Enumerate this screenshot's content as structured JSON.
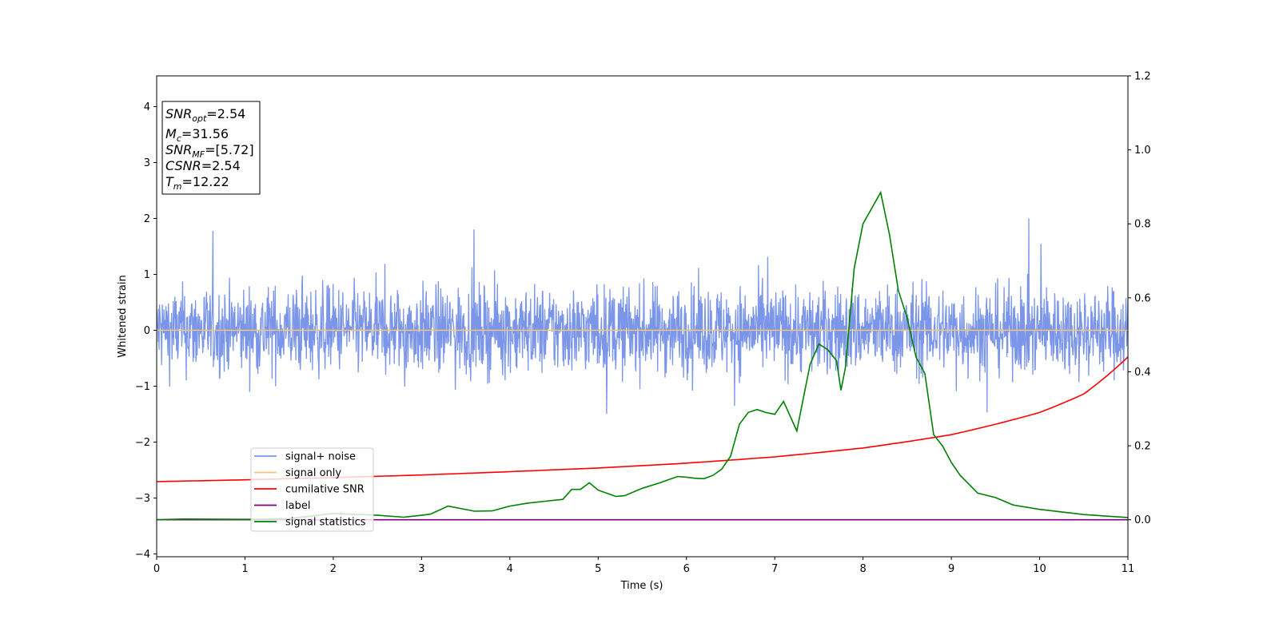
{
  "chart_data": {
    "type": "line",
    "xlabel": "Time (s)",
    "ylabel": "Whitened strain",
    "xlim": [
      0,
      11
    ],
    "ylim": [
      -4.05,
      4.55
    ],
    "y2lim": [
      -0.1,
      1.2
    ],
    "xticks": [
      0,
      1,
      2,
      3,
      4,
      5,
      6,
      7,
      8,
      9,
      10,
      11
    ],
    "yticks": [
      -4,
      -3,
      -2,
      -1,
      0,
      1,
      2,
      3,
      4
    ],
    "y2ticks": [
      0.0,
      0.2,
      0.4,
      0.6,
      0.8,
      1.0,
      1.2
    ],
    "y2tick_labels": [
      "0.0",
      "0.2",
      "0.4",
      "0.6",
      "0.8",
      "1.0",
      "1.2"
    ],
    "info_box": {
      "snr_opt": {
        "sym": "SNR",
        "sub": "opt",
        "value": "=2.54"
      },
      "mc": {
        "sym": "M",
        "sub": "c",
        "value": "=31.56"
      },
      "snr_mf": {
        "sym": "SNR",
        "sub": "MF",
        "value": "=[5.72]"
      },
      "csnr": {
        "sym": "CSNR",
        "sub": "",
        "value": "=2.54"
      },
      "tm": {
        "sym": "T",
        "sub": "m",
        "value": "=12.22"
      }
    },
    "legend": {
      "placement": "lower-left",
      "entries": [
        {
          "key": "noise",
          "label": "signal+ noise",
          "color": "#7b96e8"
        },
        {
          "key": "signal",
          "label": "signal only",
          "color": "#f6c27a"
        },
        {
          "key": "csnr",
          "label": "cumilative SNR",
          "color": "#ff0000"
        },
        {
          "key": "label",
          "label": "label",
          "color": "#800080"
        },
        {
          "key": "stats",
          "label": "signal statistics",
          "color": "#008000"
        }
      ]
    },
    "series": [
      {
        "name": "signal+ noise",
        "axis": "left",
        "color": "#7b96e8",
        "description": "band of whitened noise, roughly within ±1.2 with spikes to ±2",
        "envelope": [
          -1.3,
          1.3
        ]
      },
      {
        "name": "signal only",
        "axis": "left",
        "color": "#f6c27a",
        "x": [
          0,
          11
        ],
        "y": [
          0,
          0
        ]
      },
      {
        "name": "cumilative SNR",
        "axis": "right",
        "color": "#ff0000",
        "x": [
          0,
          1,
          2,
          3,
          4,
          5,
          6,
          7,
          8,
          9,
          10,
          10.5,
          11
        ],
        "y": [
          0.103,
          0.108,
          0.114,
          0.121,
          0.13,
          0.14,
          0.153,
          0.17,
          0.194,
          0.23,
          0.29,
          0.34,
          0.44
        ]
      },
      {
        "name": "label",
        "axis": "right",
        "color": "#800080",
        "x": [
          0,
          11
        ],
        "y": [
          0,
          0
        ]
      },
      {
        "name": "signal statistics",
        "axis": "right",
        "color": "#008000",
        "x": [
          0,
          0.3,
          1.0,
          1.5,
          2.0,
          2.5,
          2.8,
          3.0,
          3.1,
          3.3,
          3.6,
          3.8,
          4.0,
          4.2,
          4.4,
          4.6,
          4.7,
          4.8,
          4.9,
          5.0,
          5.2,
          5.3,
          5.5,
          5.7,
          5.9,
          6.0,
          6.1,
          6.2,
          6.3,
          6.4,
          6.5,
          6.6,
          6.7,
          6.8,
          6.9,
          7.0,
          7.1,
          7.25,
          7.4,
          7.5,
          7.6,
          7.7,
          7.75,
          7.8,
          7.9,
          8.0,
          8.2,
          8.3,
          8.4,
          8.5,
          8.6,
          8.7,
          8.8,
          8.9,
          9.0,
          9.1,
          9.3,
          9.5,
          9.7,
          10.0,
          10.5,
          11.0
        ],
        "y": [
          0.0,
          0.002,
          0.001,
          0.003,
          0.017,
          0.012,
          0.007,
          0.012,
          0.015,
          0.037,
          0.023,
          0.024,
          0.037,
          0.045,
          0.05,
          0.055,
          0.082,
          0.082,
          0.1,
          0.08,
          0.063,
          0.065,
          0.085,
          0.1,
          0.117,
          0.115,
          0.112,
          0.111,
          0.12,
          0.137,
          0.172,
          0.258,
          0.29,
          0.298,
          0.29,
          0.285,
          0.32,
          0.24,
          0.42,
          0.475,
          0.46,
          0.43,
          0.35,
          0.41,
          0.68,
          0.8,
          0.885,
          0.77,
          0.62,
          0.545,
          0.44,
          0.395,
          0.23,
          0.2,
          0.155,
          0.12,
          0.072,
          0.06,
          0.04,
          0.028,
          0.014,
          0.006
        ]
      }
    ]
  }
}
